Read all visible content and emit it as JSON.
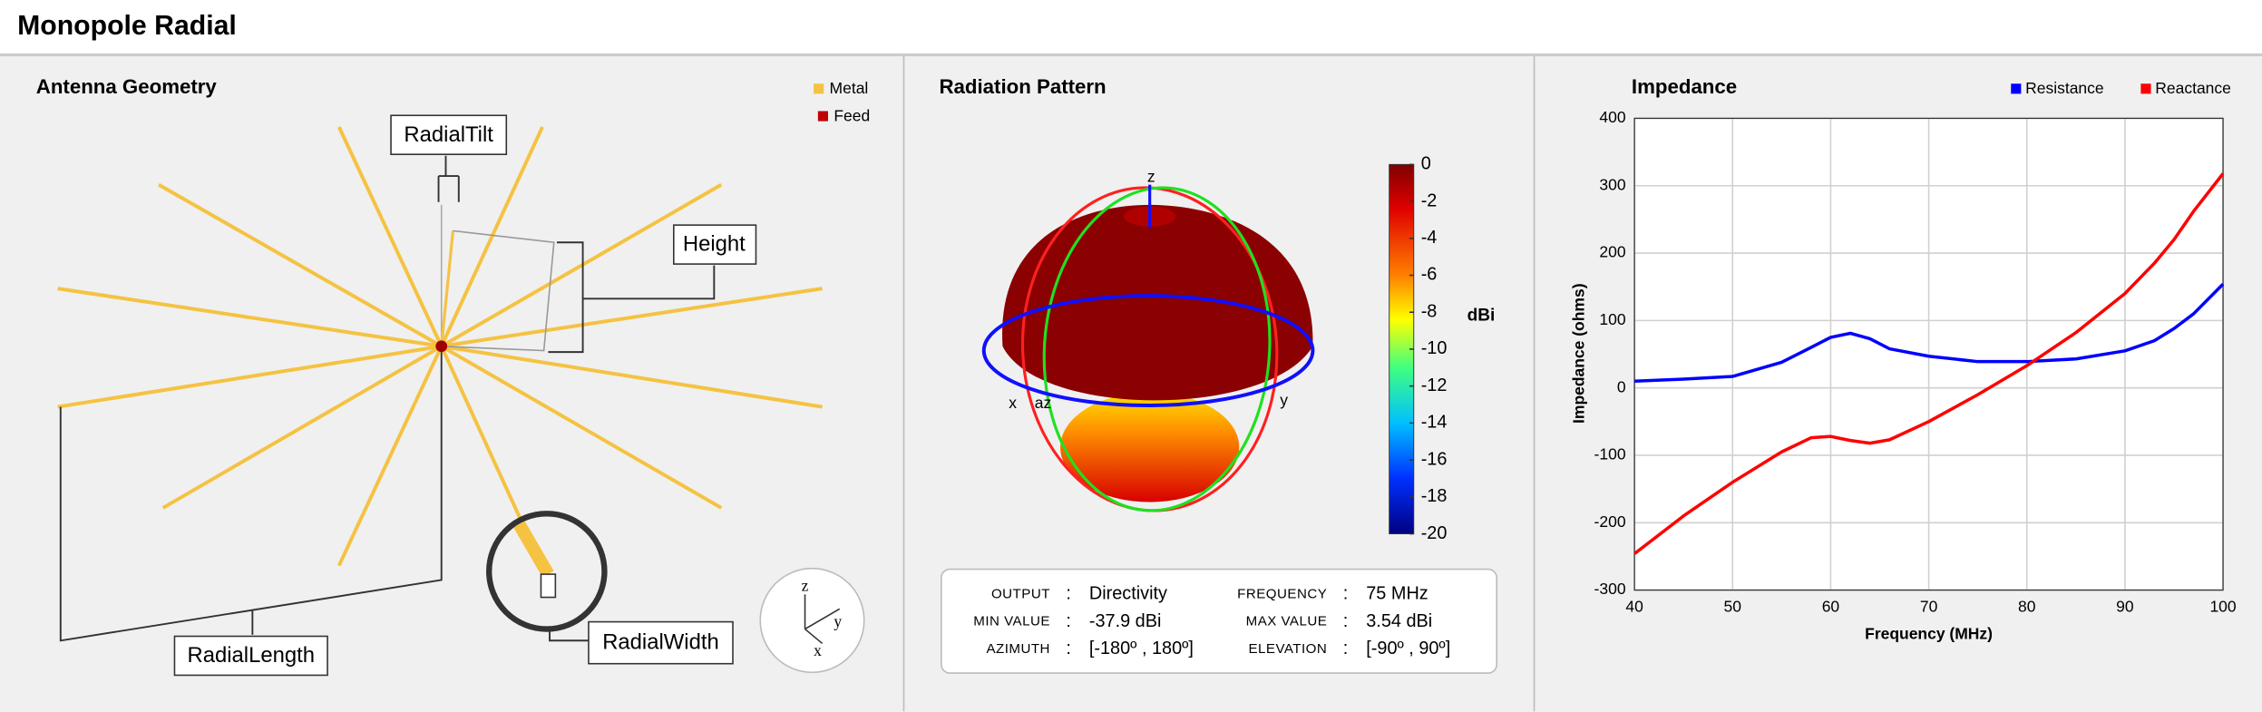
{
  "header": {
    "title": "Monopole Radial"
  },
  "geometry": {
    "title": "Antenna Geometry",
    "legend": [
      "Metal",
      "Feed"
    ],
    "labels": [
      "RadialTilt",
      "Height",
      "RadialLength",
      "RadialWidth"
    ],
    "axes": [
      "z",
      "y",
      "x"
    ]
  },
  "pattern": {
    "title": "Radiation Pattern",
    "axes": [
      "z",
      "x",
      "az",
      "y"
    ],
    "colorbar": {
      "label": "dBi",
      "ticks": [
        0,
        -2,
        -4,
        -6,
        -8,
        -10,
        -12,
        -14,
        -16,
        -18,
        -20
      ]
    },
    "info": [
      [
        "OUTPUT",
        "Directivity",
        "FREQUENCY",
        "75 MHz"
      ],
      [
        "MIN VALUE",
        "-37.9 dBi",
        "MAX VALUE",
        "3.54 dBi"
      ],
      [
        "AZIMUTH",
        "[-180º , 180º]",
        "ELEVATION",
        "[-90º , 90º]"
      ]
    ]
  },
  "chart_data": {
    "type": "line",
    "title": "Impedance",
    "x": [
      40,
      45,
      50,
      55,
      58,
      60,
      62,
      64,
      66,
      70,
      75,
      80,
      85,
      90,
      93,
      95,
      97,
      100
    ],
    "series": [
      {
        "name": "Resistance",
        "color": "#0000ff",
        "values": [
          10,
          13,
          17,
          38,
          60,
          75,
          81,
          73,
          58,
          47,
          39,
          39,
          43,
          55,
          70,
          88,
          110,
          154
        ]
      },
      {
        "name": "Reactance",
        "color": "#ff0000",
        "values": [
          -246,
          -190,
          -140,
          -95,
          -74,
          -72,
          -78,
          -82,
          -77,
          -50,
          -10,
          33,
          82,
          140,
          185,
          220,
          262,
          318
        ]
      }
    ],
    "xlim": [
      40,
      100
    ],
    "ylim": [
      -300,
      400
    ],
    "xticks": [
      40,
      50,
      60,
      70,
      80,
      90,
      100
    ],
    "yticks": [
      -300,
      -200,
      -100,
      0,
      100,
      200,
      300,
      400
    ],
    "xlabel": "Frequency (MHz)",
    "ylabel": "Impedance (ohms)",
    "grid": true
  }
}
